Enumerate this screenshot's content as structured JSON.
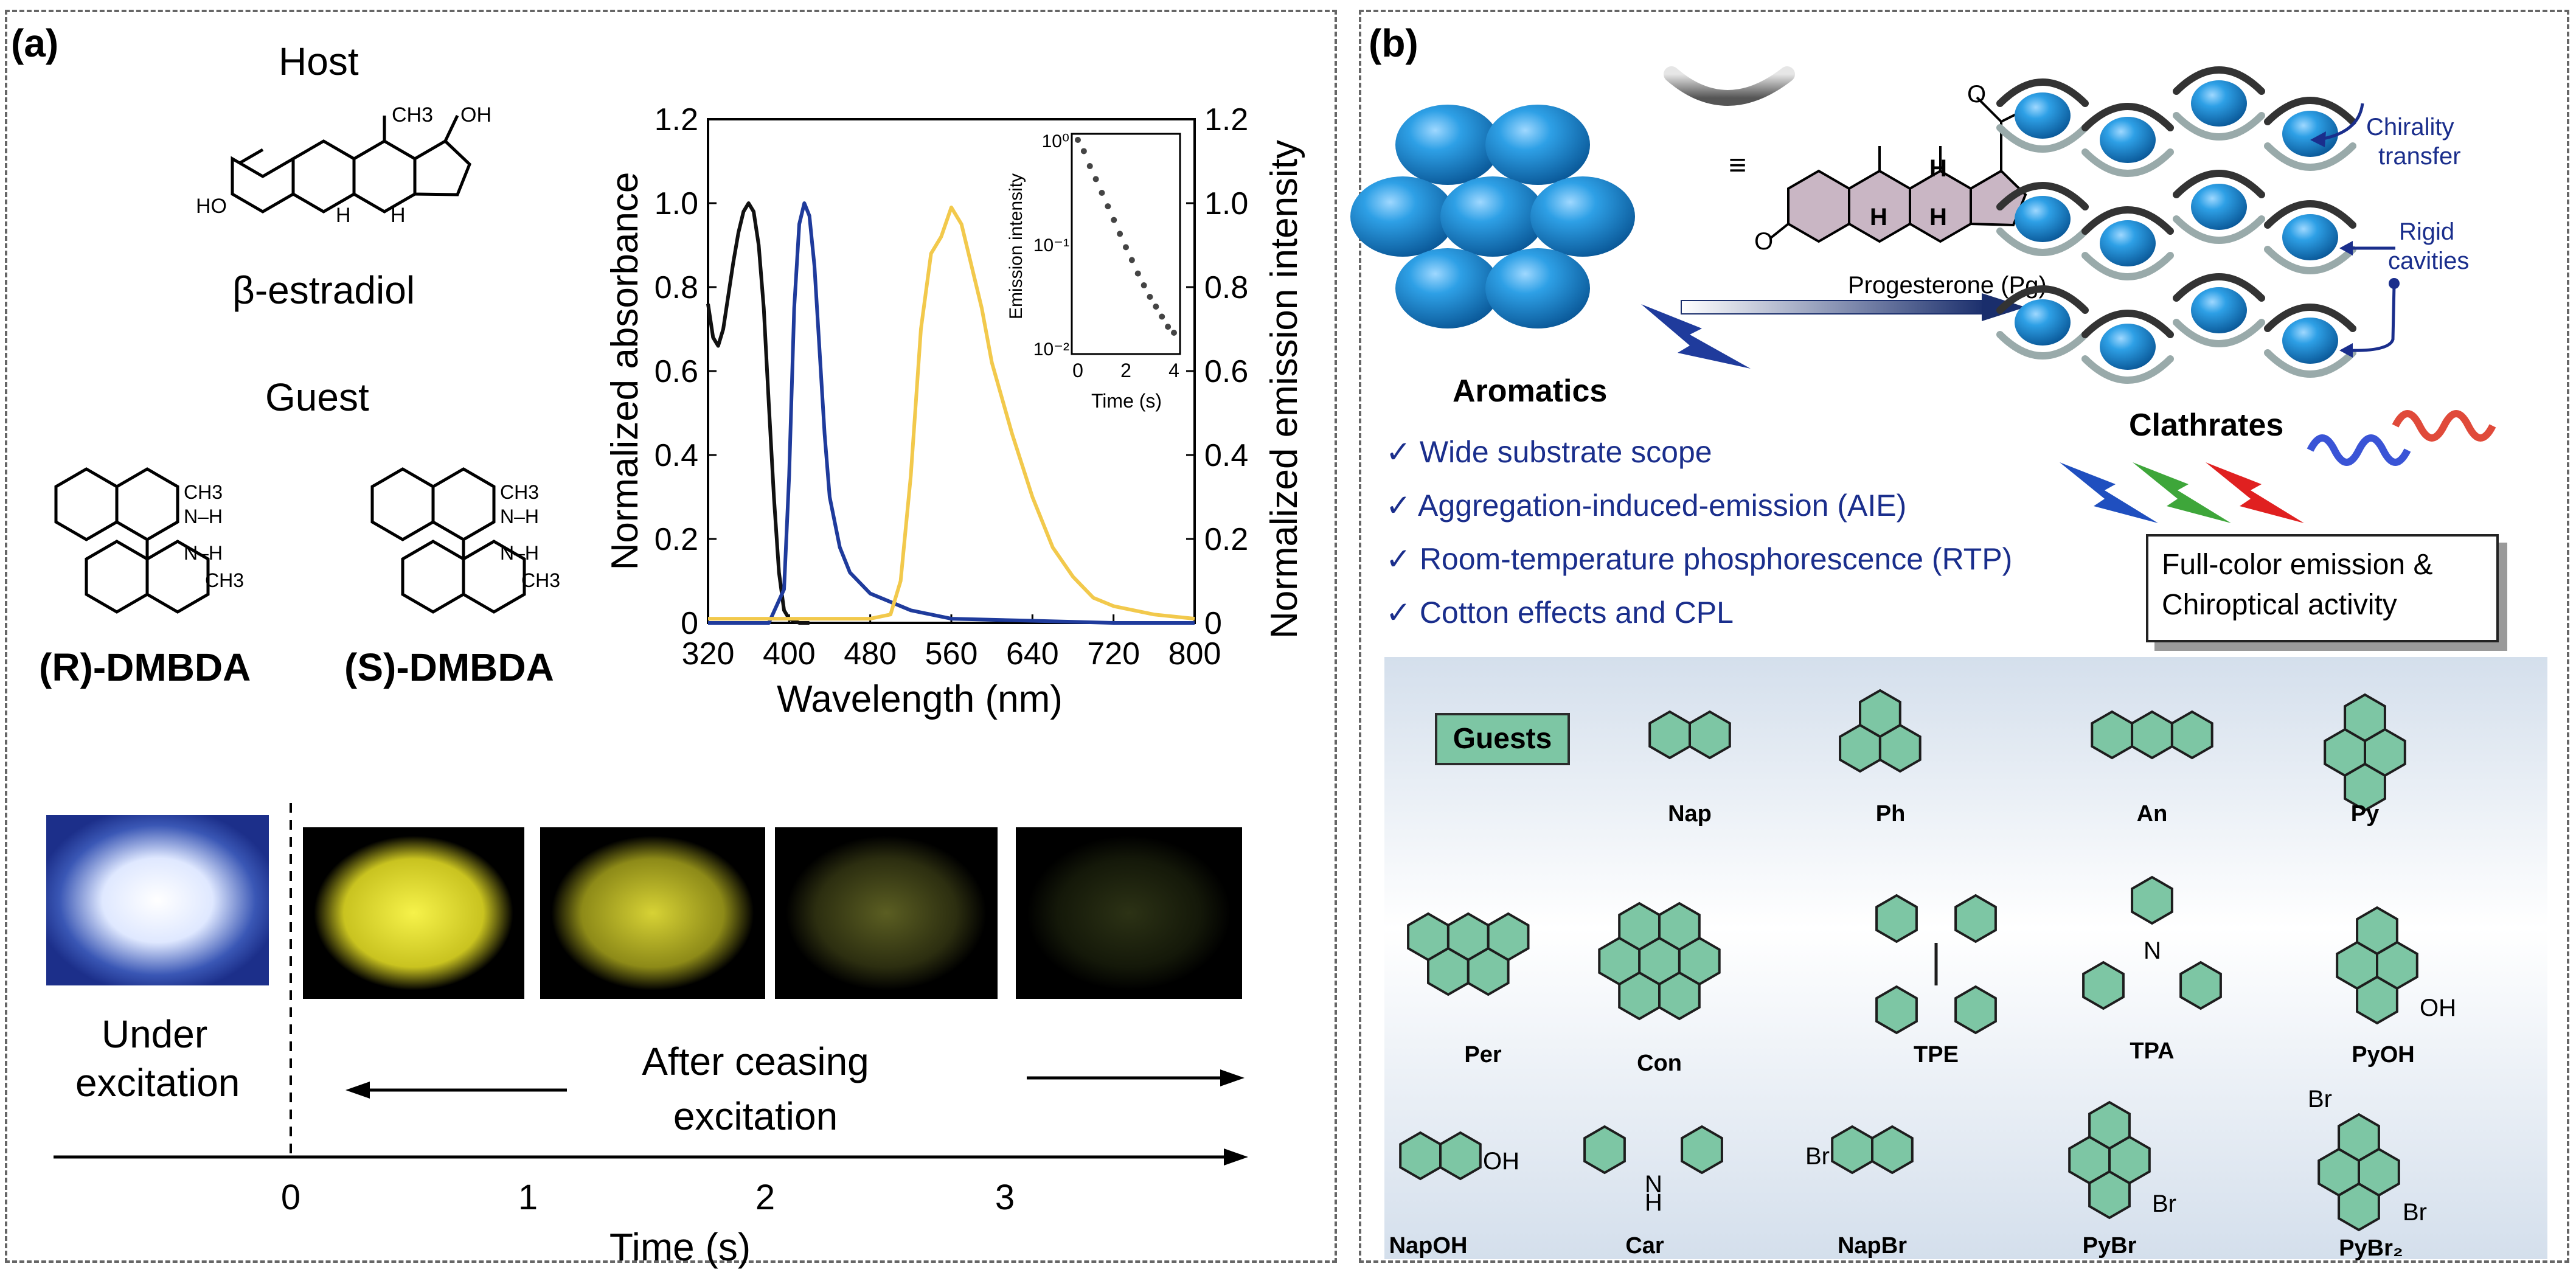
{
  "panel_a": {
    "label": "(a)",
    "host_title": "Host",
    "host_name": "β-estradiol",
    "guest_title": "Guest",
    "guest_r": "(R)-DMBDA",
    "guest_s": "(S)-DMBDA",
    "chem_labels": {
      "oh": "OH",
      "ho": "HO",
      "ch3": "CH3",
      "h": "H",
      "nh": "N–H"
    },
    "photo_caption_left": "Under excitation",
    "photo_caption_right": "After ceasing excitation",
    "timeline_ticks": [
      "0",
      "1",
      "2",
      "3"
    ],
    "timeline_label": "Time (s)"
  },
  "chart_data": {
    "type": "line",
    "xlabel": "Wavelength (nm)",
    "ylabel": "Normalized absorbance",
    "ylabel_right": "Normalized emission intensity",
    "xlim": [
      320,
      800
    ],
    "ylim": [
      0,
      1.2
    ],
    "x_ticks": [
      320,
      400,
      480,
      560,
      640,
      720,
      800
    ],
    "y_ticks": [
      0,
      0.2,
      0.4,
      0.6,
      0.8,
      1.0,
      1.2
    ],
    "y_tick_labels": [
      "0",
      "0.2",
      "0.4",
      "0.6",
      "0.8",
      "1.0",
      "1.2"
    ],
    "series": [
      {
        "color": "#111111",
        "x": [
          320,
          325,
          330,
          335,
          340,
          345,
          350,
          355,
          360,
          365,
          370,
          375,
          380,
          385,
          390,
          395,
          400,
          410,
          420
        ],
        "y": [
          0.76,
          0.68,
          0.66,
          0.7,
          0.78,
          0.86,
          0.93,
          0.98,
          1.0,
          0.98,
          0.9,
          0.75,
          0.52,
          0.3,
          0.12,
          0.03,
          0.01,
          0.0,
          0.0
        ]
      },
      {
        "color": "#1f3b9c",
        "x": [
          320,
          380,
          395,
          400,
          405,
          410,
          415,
          420,
          425,
          430,
          435,
          440,
          450,
          460,
          480,
          520,
          560,
          640,
          720,
          800
        ],
        "y": [
          0,
          0,
          0.08,
          0.35,
          0.75,
          0.95,
          1.0,
          0.97,
          0.85,
          0.65,
          0.45,
          0.3,
          0.18,
          0.12,
          0.07,
          0.03,
          0.01,
          0.005,
          0,
          0
        ]
      },
      {
        "color": "#f2c94c",
        "x": [
          320,
          400,
          480,
          500,
          510,
          520,
          530,
          540,
          550,
          560,
          570,
          580,
          590,
          600,
          620,
          640,
          660,
          680,
          700,
          720,
          760,
          800
        ],
        "y": [
          0.01,
          0.01,
          0.01,
          0.02,
          0.1,
          0.35,
          0.7,
          0.88,
          0.92,
          0.99,
          0.95,
          0.85,
          0.75,
          0.62,
          0.45,
          0.3,
          0.18,
          0.11,
          0.06,
          0.04,
          0.02,
          0.01
        ]
      }
    ],
    "inset": {
      "type": "scatter",
      "xlabel": "Time (s)",
      "ylabel": "Emission intensity",
      "xlim": [
        0,
        4
      ],
      "ylim_log": [
        0.01,
        1
      ],
      "x_ticks": [
        0,
        2,
        4
      ],
      "y_tick_labels": [
        "10⁰",
        "10⁻¹",
        "10⁻²"
      ],
      "x": [
        0,
        0.25,
        0.5,
        0.75,
        1.0,
        1.25,
        1.5,
        1.75,
        2.0,
        2.25,
        2.5,
        2.75,
        3.0,
        3.25,
        3.5,
        3.75,
        4.0
      ],
      "y": [
        1.0,
        0.78,
        0.56,
        0.42,
        0.31,
        0.23,
        0.17,
        0.125,
        0.093,
        0.07,
        0.052,
        0.04,
        0.031,
        0.025,
        0.02,
        0.016,
        0.014
      ]
    }
  },
  "panel_b": {
    "label": "(b)",
    "equiv": "≡",
    "progesterone_label": "Progesterone (Pg)",
    "aromatics_label": "Aromatics",
    "clathrates_label": "Clathrates",
    "chirality_transfer": [
      "Chirality",
      "transfer"
    ],
    "rigid_cavities": [
      "Rigid",
      "cavities"
    ],
    "features": [
      "Wide substrate scope",
      "Aggregation-induced-emission (AIE)",
      "Room-temperature phosphorescence (RTP)",
      "Cotton effects and CPL"
    ],
    "checkmark": "✓",
    "full_color_box": [
      "Full-color emission &",
      "Chiroptical activity"
    ],
    "guests_title": "Guests",
    "guests": [
      "Nap",
      "Ph",
      "An",
      "Py",
      "Per",
      "Con",
      "TPE",
      "TPA",
      "PyOH",
      "NapOH",
      "Car",
      "NapBr",
      "PyBr",
      "PyBr₂"
    ],
    "subst_labels": {
      "oh": "OH",
      "br": "Br",
      "n": "N",
      "h": "H",
      "o": "O"
    }
  },
  "colors": {
    "sphere": "#1e8fd2",
    "guest_fill": "#7dc6a4",
    "dark_blue": "#1a2e8c",
    "gold": "#f2c94c"
  }
}
